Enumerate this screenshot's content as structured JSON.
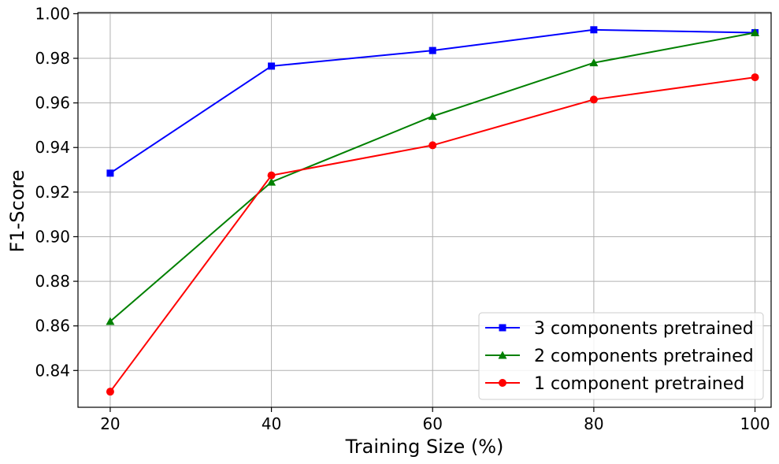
{
  "chart_data": {
    "type": "line",
    "title": "",
    "xlabel": "Training Size (%)",
    "ylabel": "F1-Score",
    "x": [
      20,
      40,
      60,
      80,
      100
    ],
    "xticks": [
      "20",
      "40",
      "60",
      "80",
      "100"
    ],
    "yticks": [
      "0.84",
      "0.86",
      "0.88",
      "0.90",
      "0.92",
      "0.94",
      "0.96",
      "0.98",
      "1.00"
    ],
    "xlim": [
      16,
      102
    ],
    "ylim": [
      0.8235,
      1.0005
    ],
    "grid": true,
    "legend_position": "bottom-right",
    "series": [
      {
        "name": "3 components pretrained",
        "color": "#0000ff",
        "marker": "square",
        "values": [
          0.9285,
          0.9765,
          0.9835,
          0.9928,
          0.9915
        ]
      },
      {
        "name": "2 components pretrained",
        "color": "#008000",
        "marker": "triangle",
        "values": [
          0.862,
          0.9245,
          0.954,
          0.978,
          0.9915
        ]
      },
      {
        "name": "1 component pretrained",
        "color": "#ff0000",
        "marker": "circle",
        "values": [
          0.8305,
          0.9275,
          0.941,
          0.9615,
          0.9715
        ]
      }
    ]
  }
}
